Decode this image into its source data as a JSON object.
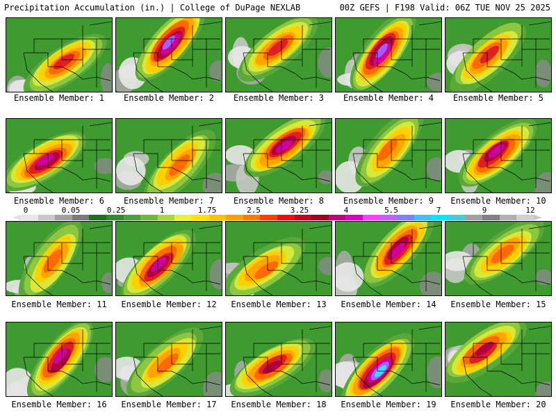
{
  "header": {
    "title_left": "Precipitation Accumulation (in.) | College of DuPage NEXLAB",
    "title_right": "00Z GEFS | F198 Valid: 06Z TUE NOV 25 2025"
  },
  "members": [
    {
      "label": "Ensemble Member: 1"
    },
    {
      "label": "Ensemble Member: 2"
    },
    {
      "label": "Ensemble Member: 3"
    },
    {
      "label": "Ensemble Member: 4"
    },
    {
      "label": "Ensemble Member: 5"
    },
    {
      "label": "Ensemble Member: 6"
    },
    {
      "label": "Ensemble Member: 7"
    },
    {
      "label": "Ensemble Member: 8"
    },
    {
      "label": "Ensemble Member: 9"
    },
    {
      "label": "Ensemble Member: 10"
    },
    {
      "label": "Ensemble Member: 11"
    },
    {
      "label": "Ensemble Member: 12"
    },
    {
      "label": "Ensemble Member: 13"
    },
    {
      "label": "Ensemble Member: 14"
    },
    {
      "label": "Ensemble Member: 15"
    },
    {
      "label": "Ensemble Member: 16"
    },
    {
      "label": "Ensemble Member: 17"
    },
    {
      "label": "Ensemble Member: 18"
    },
    {
      "label": "Ensemble Member: 19"
    },
    {
      "label": "Ensemble Member: 20"
    }
  ],
  "colorbar": {
    "tick_labels": [
      "0",
      "0.05",
      "0.25",
      "1",
      "1.75",
      "2.5",
      "3.25",
      "4",
      "5.5",
      "7",
      "9",
      "12"
    ],
    "colors": [
      "#e8e8e8",
      "#c8c8c8",
      "#a0a0a0",
      "#7a7a7a",
      "#1f6e1f",
      "#2e8b2e",
      "#4aa23a",
      "#6bbb3a",
      "#a9d83a",
      "#e8f03a",
      "#ffe000",
      "#ffc000",
      "#ffa000",
      "#ff7a00",
      "#ff4000",
      "#e81010",
      "#c80020",
      "#a0001a",
      "#c0007a",
      "#e000c0",
      "#ff40ff",
      "#c060ff",
      "#8080ff",
      "#40c0ff",
      "#00e8ff",
      "#40d0d0",
      "#a0a0a0",
      "#808080",
      "#b0b0b0",
      "#d0d0d0"
    ]
  }
}
